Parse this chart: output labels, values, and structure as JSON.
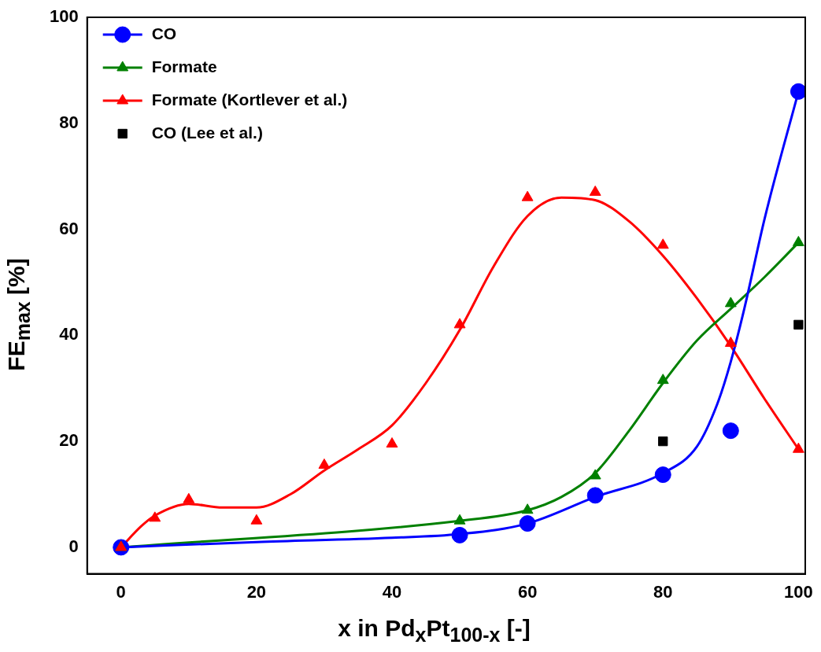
{
  "chart_data": {
    "type": "scatter",
    "xlabel": "x in Pd$_{x}$Pt$_{100-x}$ [-]",
    "ylabel": "FE$_{max}$ [%]",
    "xlim": [
      -5,
      101
    ],
    "xticks": [
      0,
      20,
      40,
      60,
      80,
      100
    ],
    "ylim": [
      -5,
      100
    ],
    "yticks": [
      0,
      20,
      40,
      60,
      80,
      100
    ],
    "grid": false,
    "legend": "top left",
    "series": [
      {
        "name": "CO",
        "type": "scatter",
        "marker": "circle",
        "color": "#0000ff",
        "x": [
          0,
          50,
          60,
          70,
          80,
          90,
          100
        ],
        "values": [
          0,
          2.3,
          4.5,
          9.8,
          13.7,
          22,
          86
        ]
      },
      {
        "name": "Formate",
        "type": "scatter",
        "marker": "triangle",
        "color": "#008000",
        "x": [
          0,
          50,
          60,
          70,
          80,
          90,
          100
        ],
        "values": [
          0,
          5,
          7,
          13.5,
          31.5,
          46,
          57.5
        ]
      },
      {
        "name": "Formate (Kortlever et al.)",
        "type": "scatter",
        "marker": "triangle",
        "color": "#ff0000",
        "x": [
          0,
          5,
          10,
          20,
          30,
          40,
          50,
          60,
          70,
          80,
          90,
          100
        ],
        "values": [
          0,
          5.5,
          9,
          5,
          15.5,
          19.5,
          42,
          66,
          67,
          57,
          38.5,
          18.5
        ]
      },
      {
        "name": "CO (Lee et al.)",
        "type": "scatter",
        "marker": "square",
        "color": "#000000",
        "x": [
          80,
          100
        ],
        "values": [
          20,
          42
        ]
      },
      {
        "type": "line",
        "marker": "none",
        "color": "#0000ff",
        "x": [
          0,
          20,
          40,
          50,
          60,
          70,
          80,
          85,
          88,
          90,
          92,
          95,
          100
        ],
        "values": [
          0,
          1,
          1.8,
          2.5,
          4.5,
          9.5,
          14,
          19,
          27,
          35,
          45,
          62,
          86
        ]
      },
      {
        "type": "line",
        "marker": "none",
        "color": "#008000",
        "x": [
          0,
          50,
          60,
          65,
          70,
          75,
          80,
          85,
          90,
          95,
          100
        ],
        "values": [
          0,
          5,
          7,
          9.5,
          14,
          22,
          31,
          39,
          45,
          51,
          57.5
        ]
      },
      {
        "type": "line",
        "marker": "none",
        "color": "#ff0000",
        "x": [
          0,
          3,
          5,
          10,
          15,
          20,
          25,
          30,
          35,
          40,
          45,
          50,
          55,
          60,
          65,
          70,
          75,
          80,
          85,
          90,
          95,
          100
        ],
        "values": [
          0,
          4,
          6,
          8.2,
          7.5,
          7.5,
          10,
          14.5,
          18.5,
          23,
          31,
          41,
          53,
          62.5,
          66,
          65.5,
          61.5,
          55,
          47,
          38,
          28,
          18.5
        ]
      }
    ]
  }
}
